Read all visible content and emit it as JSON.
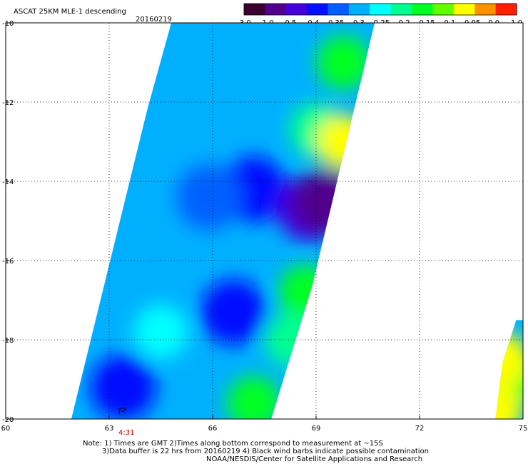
{
  "header": {
    "title": "ASCAT 25KM MLE-1 descending",
    "date": "20160219"
  },
  "colorbar": {
    "labels": [
      "-3.0",
      "-1.0",
      "-0.5",
      "-0.4",
      "-0.35",
      "-0.3",
      "-0.25",
      "-0.2",
      "-0.15",
      "-0.1",
      "-0.05",
      "0.0",
      "1.0"
    ],
    "colors": [
      "#3a0030",
      "#50008c",
      "#4400d8",
      "#0010ff",
      "#0060ff",
      "#00b0ff",
      "#00ffff",
      "#00ff90",
      "#00ff20",
      "#60ff00",
      "#ffff00",
      "#ff9000",
      "#ff2000"
    ]
  },
  "time_marker": {
    "label": "4:31",
    "color": "#cc0000"
  },
  "notes": {
    "line1": "Note: 1) Times are GMT 2)Times along bottom correspond to measurement at ~15S",
    "line2": "3)Data buffer is 22 hrs from 20160219 4) Black wind barbs indicate possible contamination",
    "line3": "NOAA/NESDIS/Center for Satellite Applications and Research"
  },
  "chart_data": {
    "type": "heatmap",
    "title": "ASCAT 25KM MLE-1 descending",
    "xlabel": "",
    "ylabel": "",
    "xlim": [
      60,
      75
    ],
    "ylim": [
      -20,
      -10
    ],
    "x_ticks": [
      "60",
      "63",
      "66",
      "69",
      "72",
      "75"
    ],
    "y_ticks": [
      "-10",
      "-12",
      "-14",
      "-16",
      "-18",
      "-20"
    ],
    "grid": true,
    "grid_style": "dotted",
    "colorbar_position": "top-right",
    "swaths": [
      {
        "name": "main swath",
        "polygon": [
          [
            64.8,
            -10
          ],
          [
            70.7,
            -10
          ],
          [
            68.9,
            -16.6
          ],
          [
            67.7,
            -20
          ],
          [
            61.9,
            -20
          ],
          [
            64.1,
            -12.2
          ]
        ],
        "regions": [
          {
            "lon": 67.2,
            "lat": -14.2,
            "value": -0.4
          },
          {
            "lon": 68.8,
            "lat": -14.7,
            "value": -0.5
          },
          {
            "lon": 69.3,
            "lat": -14.5,
            "value": -1.0
          },
          {
            "lon": 65.9,
            "lat": -14.4,
            "value": -0.35
          },
          {
            "lon": 66.6,
            "lat": -17.3,
            "value": -0.4
          },
          {
            "lon": 63.4,
            "lat": -19.2,
            "value": -0.4
          },
          {
            "lon": 69.8,
            "lat": -11.0,
            "value": -0.15
          },
          {
            "lon": 69.0,
            "lat": -12.7,
            "value": -0.2
          },
          {
            "lon": 69.8,
            "lat": -13.0,
            "value": -0.05
          },
          {
            "lon": 68.7,
            "lat": -16.8,
            "value": -0.15
          },
          {
            "lon": 68.3,
            "lat": -18.0,
            "value": -0.2
          },
          {
            "lon": 67.2,
            "lat": -19.6,
            "value": -0.15
          },
          {
            "lon": 64.5,
            "lat": -17.8,
            "value": -0.25
          },
          {
            "lon": 65.5,
            "lat": -11.5,
            "value": -0.3
          }
        ]
      },
      {
        "name": "right swath edge",
        "polygon": [
          [
            74.8,
            -17.5
          ],
          [
            75.0,
            -17.5
          ],
          [
            75.0,
            -20
          ],
          [
            74.2,
            -20
          ],
          [
            74.4,
            -18.6
          ]
        ],
        "regions": [
          {
            "lon": 74.7,
            "lat": -19.0,
            "value": -0.15
          },
          {
            "lon": 74.4,
            "lat": -18.5,
            "value": -0.05
          },
          {
            "lon": 74.2,
            "lat": -19.8,
            "value": -0.05
          }
        ]
      }
    ],
    "wind_barbs": [
      {
        "lon": 63.4,
        "lat": -19.8
      }
    ]
  }
}
